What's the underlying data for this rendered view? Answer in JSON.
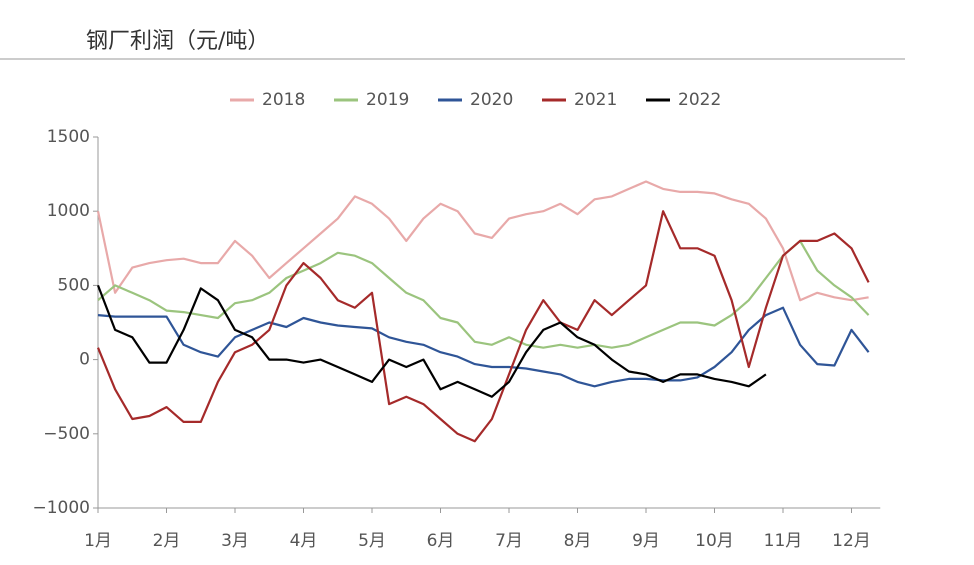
{
  "chart_data": {
    "type": "line",
    "title": "钢厂利润（元/吨）",
    "x": [
      1,
      1.25,
      1.5,
      1.75,
      2,
      2.25,
      2.5,
      2.75,
      3,
      3.25,
      3.5,
      3.75,
      4,
      4.25,
      4.5,
      4.75,
      5,
      5.25,
      5.5,
      5.75,
      6,
      6.25,
      6.5,
      6.75,
      7,
      7.25,
      7.5,
      7.75,
      8,
      8.25,
      8.5,
      8.75,
      9,
      9.25,
      9.5,
      9.75,
      10,
      10.25,
      10.5,
      10.75,
      11,
      11.25,
      11.5,
      11.75,
      12,
      12.25
    ],
    "xlim": [
      1,
      12.42
    ],
    "xticks": [
      {
        "value": 1,
        "label": "1月"
      },
      {
        "value": 2,
        "label": "2月"
      },
      {
        "value": 3,
        "label": "3月"
      },
      {
        "value": 4,
        "label": "4月"
      },
      {
        "value": 5,
        "label": "5月"
      },
      {
        "value": 6,
        "label": "6月"
      },
      {
        "value": 7,
        "label": "7月"
      },
      {
        "value": 8,
        "label": "8月"
      },
      {
        "value": 9,
        "label": "9月"
      },
      {
        "value": 10,
        "label": "10月"
      },
      {
        "value": 11,
        "label": "11月"
      },
      {
        "value": 12,
        "label": "12月"
      }
    ],
    "ylim": [
      -1000,
      1500
    ],
    "yticks": [
      {
        "value": -1000,
        "label": "−1000"
      },
      {
        "value": -500,
        "label": "−500"
      },
      0,
      500,
      1000,
      1500
    ],
    "legend": "top",
    "series": [
      {
        "name": "2018",
        "color": "#e8a9a9",
        "values": [
          1000,
          450,
          620,
          650,
          670,
          680,
          650,
          650,
          800,
          700,
          550,
          650,
          750,
          850,
          950,
          1100,
          1050,
          950,
          800,
          950,
          1050,
          1000,
          850,
          820,
          950,
          980,
          1000,
          1050,
          980,
          1080,
          1100,
          1150,
          1200,
          1150,
          1130,
          1130,
          1120,
          1080,
          1050,
          950,
          750,
          400,
          450,
          420,
          400,
          420
        ]
      },
      {
        "name": "2019",
        "color": "#9bc47e",
        "values": [
          400,
          500,
          450,
          400,
          330,
          320,
          300,
          280,
          380,
          400,
          450,
          550,
          600,
          650,
          720,
          700,
          650,
          550,
          450,
          400,
          280,
          250,
          120,
          100,
          150,
          100,
          80,
          100,
          80,
          100,
          80,
          100,
          150,
          200,
          250,
          250,
          230,
          300,
          400,
          550,
          700,
          800,
          600,
          500,
          420,
          300
        ]
      },
      {
        "name": "2020",
        "color": "#2f5597",
        "values": [
          300,
          290,
          290,
          290,
          290,
          100,
          50,
          20,
          150,
          200,
          250,
          220,
          280,
          250,
          230,
          220,
          210,
          150,
          120,
          100,
          50,
          20,
          -30,
          -50,
          -50,
          -60,
          -80,
          -100,
          -150,
          -180,
          -150,
          -130,
          -130,
          -140,
          -140,
          -120,
          -50,
          50,
          200,
          300,
          350,
          100,
          -30,
          -40,
          200,
          50
        ]
      },
      {
        "name": "2021",
        "color": "#a52a2a",
        "values": [
          80,
          -200,
          -400,
          -380,
          -320,
          -420,
          -420,
          -150,
          50,
          100,
          200,
          500,
          650,
          550,
          400,
          350,
          450,
          -300,
          -250,
          -300,
          -400,
          -500,
          -550,
          -400,
          -100,
          200,
          400,
          250,
          200,
          400,
          300,
          400,
          500,
          1000,
          750,
          750,
          700,
          400,
          -50,
          350,
          700,
          800,
          800,
          850,
          750,
          520
        ]
      },
      {
        "name": "2022",
        "color": "#000000",
        "values": [
          500,
          200,
          150,
          -20,
          -20,
          200,
          480,
          400,
          200,
          150,
          0,
          0,
          -20,
          0,
          -50,
          -100,
          -150,
          0,
          -50,
          0,
          -200,
          -150,
          -200,
          -250,
          -150,
          50,
          200,
          250,
          150,
          100,
          0,
          -80,
          -100,
          -150,
          -100,
          -100,
          -130,
          -150,
          -180,
          -100,
          null,
          null,
          null,
          null,
          null,
          null
        ]
      }
    ]
  }
}
